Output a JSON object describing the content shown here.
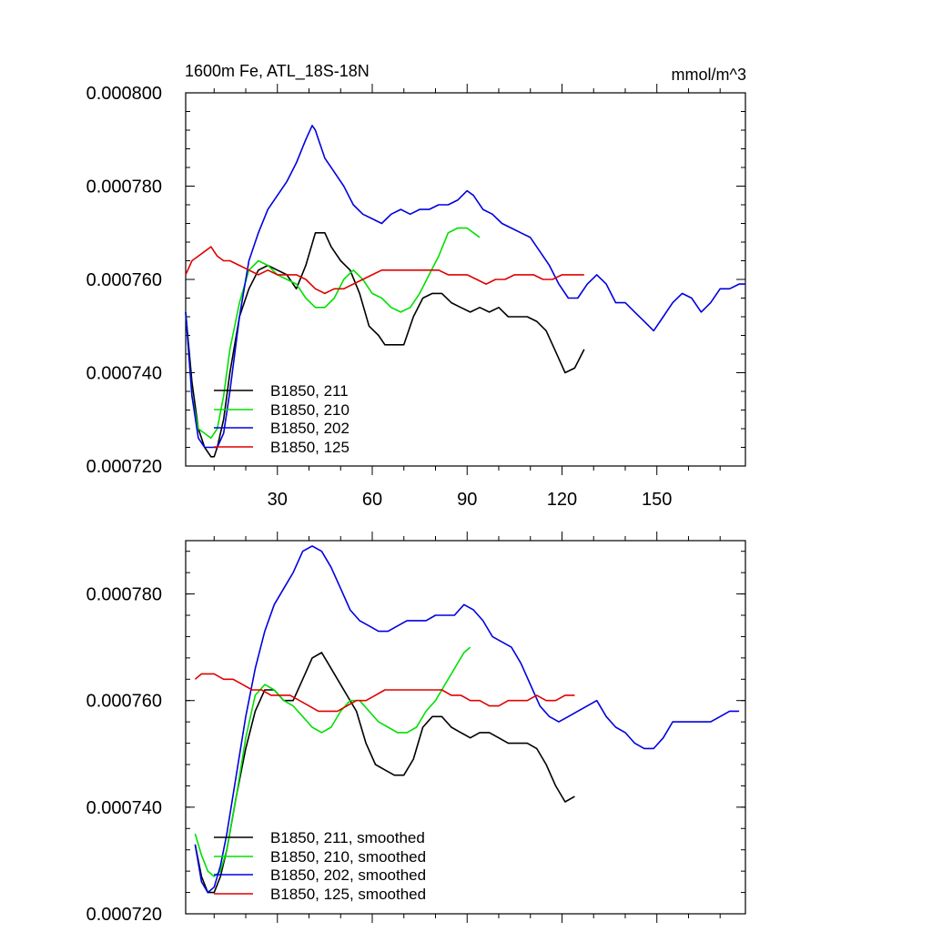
{
  "colors": {
    "b211": "#000000",
    "b210": "#00e000",
    "b202": "#0000e0",
    "b125": "#e00000"
  },
  "chart_data": [
    {
      "type": "line",
      "title": "1600m Fe, ATL_18S-18N",
      "units": "mmol/m^3",
      "xlabel": "",
      "ylabel": "",
      "xlim": [
        1,
        178
      ],
      "ylim": [
        0.00072,
        0.0008
      ],
      "xticks": [
        30,
        60,
        90,
        120,
        150
      ],
      "xtick_labels": [
        "30",
        "60",
        "90",
        "120",
        "150"
      ],
      "yticks": [
        0.00072,
        0.00074,
        0.00076,
        0.00078,
        0.0008
      ],
      "ytick_labels": [
        "0.000720",
        "0.000740",
        "0.000760",
        "0.000780",
        "0.000800"
      ],
      "legend_position": "bottom-left",
      "series": [
        {
          "name": "B1850, 211",
          "color_key": "b211",
          "x": [
            1,
            3,
            5,
            7,
            9,
            10,
            11,
            13,
            15,
            18,
            21,
            24,
            27,
            30,
            33,
            36,
            39,
            42,
            45,
            47,
            50,
            53,
            56,
            59,
            62,
            64,
            67,
            70,
            73,
            76,
            79,
            82,
            85,
            88,
            91,
            94,
            97,
            100,
            103,
            106,
            109,
            112,
            115,
            117,
            119,
            121,
            124,
            127
          ],
          "y": [
            0.000753,
            0.000738,
            0.000728,
            0.000724,
            0.000722,
            0.000722,
            0.000724,
            0.00073,
            0.00074,
            0.000752,
            0.000758,
            0.000762,
            0.000763,
            0.000762,
            0.000761,
            0.000758,
            0.000763,
            0.00077,
            0.00077,
            0.000767,
            0.000764,
            0.000762,
            0.000757,
            0.00075,
            0.000748,
            0.000746,
            0.000746,
            0.000746,
            0.000752,
            0.000756,
            0.000757,
            0.000757,
            0.000755,
            0.000754,
            0.000753,
            0.000754,
            0.000753,
            0.000754,
            0.000752,
            0.000752,
            0.000752,
            0.000751,
            0.000749,
            0.000746,
            0.000743,
            0.00074,
            0.000741,
            0.000745
          ]
        },
        {
          "name": "B1850, 210",
          "color_key": "b210",
          "x": [
            1,
            3,
            5,
            7,
            9,
            11,
            13,
            15,
            18,
            21,
            24,
            27,
            30,
            33,
            36,
            39,
            42,
            45,
            48,
            51,
            54,
            57,
            60,
            63,
            66,
            69,
            72,
            75,
            78,
            81,
            84,
            87,
            90,
            92,
            94
          ],
          "y": [
            0.000753,
            0.000735,
            0.000728,
            0.000727,
            0.000726,
            0.000728,
            0.000735,
            0.000745,
            0.000755,
            0.000762,
            0.000764,
            0.000763,
            0.000761,
            0.00076,
            0.000759,
            0.000756,
            0.000754,
            0.000754,
            0.000756,
            0.00076,
            0.000762,
            0.00076,
            0.000757,
            0.000756,
            0.000754,
            0.000753,
            0.000754,
            0.000757,
            0.000761,
            0.000765,
            0.00077,
            0.000771,
            0.000771,
            0.00077,
            0.000769
          ]
        },
        {
          "name": "B1850, 202",
          "color_key": "b202",
          "x": [
            1,
            3,
            5,
            7,
            9,
            11,
            13,
            15,
            18,
            21,
            24,
            27,
            30,
            33,
            36,
            39,
            41,
            42,
            43,
            45,
            48,
            51,
            54,
            57,
            60,
            63,
            66,
            69,
            72,
            75,
            78,
            81,
            84,
            87,
            90,
            92,
            95,
            98,
            101,
            104,
            107,
            110,
            113,
            116,
            119,
            122,
            125,
            128,
            131,
            134,
            137,
            140,
            143,
            146,
            149,
            152,
            155,
            158,
            161,
            164,
            167,
            170,
            173,
            176,
            178
          ],
          "y": [
            0.000753,
            0.000735,
            0.000726,
            0.000724,
            0.000724,
            0.000724,
            0.000727,
            0.000736,
            0.000752,
            0.000764,
            0.00077,
            0.000775,
            0.000778,
            0.000781,
            0.000785,
            0.00079,
            0.000793,
            0.000792,
            0.00079,
            0.000786,
            0.000783,
            0.00078,
            0.000776,
            0.000774,
            0.000773,
            0.000772,
            0.000774,
            0.000775,
            0.000774,
            0.000775,
            0.000775,
            0.000776,
            0.000776,
            0.000777,
            0.000779,
            0.000778,
            0.000775,
            0.000774,
            0.000772,
            0.000771,
            0.00077,
            0.000769,
            0.000766,
            0.000763,
            0.000759,
            0.000756,
            0.000756,
            0.000759,
            0.000761,
            0.000759,
            0.000755,
            0.000755,
            0.000753,
            0.000751,
            0.000749,
            0.000752,
            0.000755,
            0.000757,
            0.000756,
            0.000753,
            0.000755,
            0.000758,
            0.000758,
            0.000759,
            0.000759
          ]
        },
        {
          "name": "B1850, 125",
          "color_key": "b125",
          "x": [
            1,
            3,
            5,
            7,
            9,
            11,
            13,
            15,
            18,
            21,
            24,
            27,
            30,
            33,
            36,
            39,
            42,
            45,
            48,
            51,
            54,
            57,
            60,
            63,
            66,
            69,
            72,
            75,
            78,
            81,
            84,
            87,
            90,
            93,
            96,
            99,
            102,
            105,
            108,
            111,
            114,
            117,
            120,
            123,
            126,
            127
          ],
          "y": [
            0.000761,
            0.000764,
            0.000765,
            0.000766,
            0.000767,
            0.000765,
            0.000764,
            0.000764,
            0.000763,
            0.000762,
            0.000761,
            0.000762,
            0.000761,
            0.000761,
            0.000761,
            0.00076,
            0.000758,
            0.000757,
            0.000758,
            0.000758,
            0.000759,
            0.00076,
            0.000761,
            0.000762,
            0.000762,
            0.000762,
            0.000762,
            0.000762,
            0.000762,
            0.000762,
            0.000761,
            0.000761,
            0.000761,
            0.00076,
            0.000759,
            0.00076,
            0.00076,
            0.000761,
            0.000761,
            0.000761,
            0.00076,
            0.00076,
            0.000761,
            0.000761,
            0.000761,
            0.000761
          ]
        }
      ]
    },
    {
      "type": "line",
      "title": "",
      "xlabel": "",
      "ylabel": "",
      "xlim": [
        1,
        178
      ],
      "ylim": [
        0.00072,
        0.00079
      ],
      "xticks": [
        30,
        60,
        90,
        120,
        150
      ],
      "yticks": [
        0.00072,
        0.00074,
        0.00076,
        0.00078
      ],
      "ytick_labels": [
        "0.000720",
        "0.000740",
        "0.000760",
        "0.000780"
      ],
      "legend_position": "bottom-left",
      "series": [
        {
          "name": "B1850, 211, smoothed",
          "color_key": "b211",
          "x": [
            4,
            6,
            8,
            10,
            12,
            14,
            17,
            20,
            23,
            26,
            29,
            32,
            35,
            38,
            41,
            44,
            46,
            49,
            52,
            55,
            58,
            61,
            64,
            67,
            70,
            73,
            76,
            79,
            82,
            85,
            88,
            91,
            94,
            97,
            100,
            103,
            106,
            109,
            112,
            115,
            118,
            121,
            124
          ],
          "y": [
            0.000733,
            0.000727,
            0.000724,
            0.000724,
            0.000727,
            0.000732,
            0.000742,
            0.000751,
            0.000758,
            0.000762,
            0.000762,
            0.00076,
            0.00076,
            0.000764,
            0.000768,
            0.000769,
            0.000767,
            0.000764,
            0.000761,
            0.000758,
            0.000752,
            0.000748,
            0.000747,
            0.000746,
            0.000746,
            0.000749,
            0.000755,
            0.000757,
            0.000757,
            0.000755,
            0.000754,
            0.000753,
            0.000754,
            0.000754,
            0.000753,
            0.000752,
            0.000752,
            0.000752,
            0.000751,
            0.000748,
            0.000744,
            0.000741,
            0.000742
          ]
        },
        {
          "name": "B1850, 210, smoothed",
          "color_key": "b210",
          "x": [
            4,
            6,
            8,
            10,
            12,
            14,
            17,
            20,
            23,
            26,
            29,
            32,
            35,
            38,
            41,
            44,
            47,
            50,
            53,
            56,
            59,
            62,
            65,
            68,
            71,
            74,
            77,
            80,
            83,
            86,
            89,
            91
          ],
          "y": [
            0.000735,
            0.000731,
            0.000728,
            0.000727,
            0.000728,
            0.000732,
            0.000742,
            0.000753,
            0.000761,
            0.000763,
            0.000762,
            0.00076,
            0.000759,
            0.000757,
            0.000755,
            0.000754,
            0.000755,
            0.000758,
            0.00076,
            0.00076,
            0.000758,
            0.000756,
            0.000755,
            0.000754,
            0.000754,
            0.000755,
            0.000758,
            0.00076,
            0.000763,
            0.000766,
            0.000769,
            0.00077
          ]
        },
        {
          "name": "B1850, 202, smoothed",
          "color_key": "b202",
          "x": [
            4,
            6,
            8,
            10,
            12,
            14,
            17,
            20,
            23,
            26,
            29,
            32,
            35,
            38,
            41,
            44,
            47,
            50,
            53,
            56,
            59,
            62,
            65,
            68,
            71,
            74,
            77,
            80,
            83,
            86,
            89,
            92,
            95,
            98,
            101,
            104,
            107,
            110,
            113,
            116,
            119,
            122,
            125,
            128,
            131,
            134,
            137,
            140,
            143,
            146,
            149,
            152,
            155,
            158,
            161,
            164,
            167,
            170,
            173,
            176
          ],
          "y": [
            0.000733,
            0.000726,
            0.000724,
            0.000725,
            0.000729,
            0.000735,
            0.000746,
            0.000757,
            0.000766,
            0.000773,
            0.000778,
            0.000781,
            0.000784,
            0.000788,
            0.000789,
            0.000788,
            0.000785,
            0.000781,
            0.000777,
            0.000775,
            0.000774,
            0.000773,
            0.000773,
            0.000774,
            0.000775,
            0.000775,
            0.000775,
            0.000776,
            0.000776,
            0.000776,
            0.000778,
            0.000777,
            0.000775,
            0.000772,
            0.000771,
            0.00077,
            0.000767,
            0.000763,
            0.000759,
            0.000757,
            0.000756,
            0.000757,
            0.000758,
            0.000759,
            0.00076,
            0.000757,
            0.000755,
            0.000754,
            0.000752,
            0.000751,
            0.000751,
            0.000753,
            0.000756,
            0.000756,
            0.000756,
            0.000756,
            0.000756,
            0.000757,
            0.000758,
            0.000758
          ]
        },
        {
          "name": "B1850, 125, smoothed",
          "color_key": "b125",
          "x": [
            4,
            6,
            8,
            10,
            13,
            16,
            19,
            22,
            25,
            28,
            31,
            34,
            37,
            40,
            43,
            46,
            49,
            52,
            55,
            58,
            61,
            64,
            67,
            70,
            73,
            76,
            79,
            82,
            85,
            88,
            91,
            94,
            97,
            100,
            103,
            106,
            109,
            112,
            115,
            118,
            121,
            124
          ],
          "y": [
            0.000764,
            0.000765,
            0.000765,
            0.000765,
            0.000764,
            0.000764,
            0.000763,
            0.000762,
            0.000762,
            0.000761,
            0.000761,
            0.000761,
            0.00076,
            0.000759,
            0.000758,
            0.000758,
            0.000758,
            0.000759,
            0.00076,
            0.00076,
            0.000761,
            0.000762,
            0.000762,
            0.000762,
            0.000762,
            0.000762,
            0.000762,
            0.000762,
            0.000761,
            0.000761,
            0.00076,
            0.00076,
            0.000759,
            0.000759,
            0.00076,
            0.00076,
            0.00076,
            0.000761,
            0.00076,
            0.00076,
            0.000761,
            0.000761
          ]
        }
      ]
    }
  ]
}
